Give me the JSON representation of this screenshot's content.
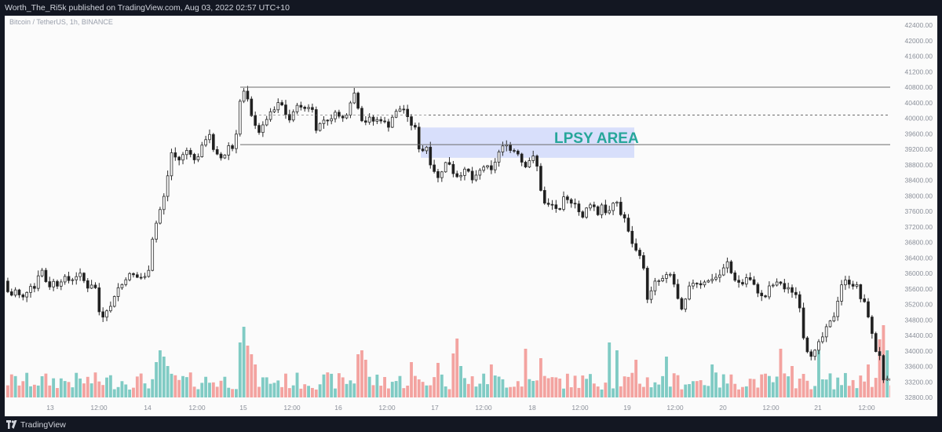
{
  "header": {
    "published_text": "Worth_The_Ri5k published on TradingView.com, Aug 03, 2022 02:57 UTC+10",
    "symbol_text": "Bitcoin / TetherUS, 1h, BINANCE"
  },
  "footer": {
    "brand": "TradingView"
  },
  "colors": {
    "up": "#26a69a",
    "down": "#ef5350",
    "candle_dark": "#1e1e1e",
    "candle_light": "#ffffff",
    "vol_up": "#80cbc4",
    "vol_down": "#f3a3a0",
    "zone_fill": "#cfd8fb",
    "label": "#26a69a",
    "level_line": "#6b6b6b"
  },
  "chart_data": {
    "type": "candlestick",
    "symbol": "Bitcoin / TetherUS",
    "interval": "1h",
    "exchange": "BINANCE",
    "ylim": [
      32600,
      42600
    ],
    "y_ticks": [
      "42400.00",
      "42000.00",
      "41600.00",
      "41200.00",
      "40800.00",
      "40400.00",
      "40000.00",
      "39600.00",
      "39200.00",
      "38800.00",
      "38400.00",
      "38000.00",
      "37600.00",
      "37200.00",
      "36800.00",
      "36400.00",
      "36000.00",
      "35600.00",
      "35200.00",
      "34800.00",
      "34400.00",
      "34000.00",
      "33600.00",
      "33200.00",
      "32800.00"
    ],
    "x_ticks": [
      "13",
      "12:00",
      "14",
      "12:00",
      "15",
      "12:00",
      "16",
      "12:00",
      "17",
      "12:00",
      "18",
      "12:00",
      "19",
      "12:00",
      "20",
      "12:00",
      "21",
      "12:00"
    ],
    "close_path": [
      [
        0,
        35800
      ],
      [
        10,
        35400
      ],
      [
        18,
        35600
      ],
      [
        24,
        35300
      ],
      [
        30,
        35500
      ],
      [
        36,
        35700
      ],
      [
        42,
        35600
      ],
      [
        46,
        36000
      ],
      [
        50,
        36100
      ],
      [
        54,
        35900
      ],
      [
        58,
        35600
      ],
      [
        64,
        35800
      ],
      [
        70,
        35700
      ],
      [
        78,
        35900
      ],
      [
        86,
        35800
      ],
      [
        92,
        35900
      ],
      [
        98,
        36000
      ],
      [
        104,
        35800
      ],
      [
        110,
        35600
      ],
      [
        116,
        35800
      ],
      [
        120,
        35500
      ],
      [
        124,
        34900
      ],
      [
        128,
        34900
      ],
      [
        132,
        35100
      ],
      [
        136,
        35000
      ],
      [
        140,
        35300
      ],
      [
        146,
        35600
      ],
      [
        152,
        35700
      ],
      [
        158,
        35900
      ],
      [
        164,
        36000
      ],
      [
        170,
        35900
      ],
      [
        176,
        35900
      ],
      [
        182,
        35900
      ],
      [
        188,
        36200
      ],
      [
        192,
        37100
      ],
      [
        196,
        37300
      ],
      [
        200,
        37600
      ],
      [
        204,
        37800
      ],
      [
        208,
        38200
      ],
      [
        212,
        38700
      ],
      [
        214,
        38900
      ],
      [
        216,
        39200
      ],
      [
        220,
        39000
      ],
      [
        224,
        38900
      ],
      [
        228,
        39000
      ],
      [
        232,
        39100
      ],
      [
        236,
        39200
      ],
      [
        240,
        39100
      ],
      [
        244,
        38900
      ],
      [
        248,
        39000
      ],
      [
        252,
        39100
      ],
      [
        256,
        39400
      ],
      [
        260,
        39500
      ],
      [
        264,
        39600
      ],
      [
        268,
        39200
      ],
      [
        272,
        39000
      ],
      [
        276,
        39100
      ],
      [
        280,
        38900
      ],
      [
        284,
        39100
      ],
      [
        288,
        39300
      ],
      [
        292,
        39200
      ],
      [
        296,
        39300
      ],
      [
        300,
        40000
      ],
      [
        302,
        40400
      ],
      [
        304,
        40500
      ],
      [
        308,
        40700
      ],
      [
        312,
        40500
      ],
      [
        316,
        40100
      ],
      [
        320,
        39900
      ],
      [
        324,
        39800
      ],
      [
        328,
        39600
      ],
      [
        334,
        39900
      ],
      [
        340,
        40100
      ],
      [
        346,
        40200
      ],
      [
        352,
        40400
      ],
      [
        358,
        40300
      ],
      [
        364,
        39900
      ],
      [
        370,
        40100
      ],
      [
        376,
        40400
      ],
      [
        382,
        40200
      ],
      [
        388,
        40300
      ],
      [
        394,
        40300
      ],
      [
        400,
        39700
      ],
      [
        406,
        39900
      ],
      [
        412,
        40000
      ],
      [
        418,
        39900
      ],
      [
        424,
        40200
      ],
      [
        430,
        40000
      ],
      [
        436,
        40000
      ],
      [
        442,
        40300
      ],
      [
        446,
        40700
      ],
      [
        450,
        40600
      ],
      [
        456,
        40000
      ],
      [
        462,
        39900
      ],
      [
        468,
        40000
      ],
      [
        474,
        39900
      ],
      [
        480,
        40000
      ],
      [
        486,
        39900
      ],
      [
        492,
        39800
      ],
      [
        498,
        40100
      ],
      [
        504,
        40200
      ],
      [
        510,
        40300
      ],
      [
        516,
        40000
      ],
      [
        522,
        39800
      ],
      [
        528,
        39700
      ],
      [
        532,
        39000
      ],
      [
        536,
        39200
      ],
      [
        540,
        39300
      ],
      [
        544,
        38900
      ],
      [
        548,
        38700
      ],
      [
        552,
        38600
      ],
      [
        556,
        38400
      ],
      [
        562,
        38800
      ],
      [
        568,
        38900
      ],
      [
        574,
        38600
      ],
      [
        580,
        38500
      ],
      [
        586,
        38600
      ],
      [
        592,
        38700
      ],
      [
        598,
        38400
      ],
      [
        604,
        38500
      ],
      [
        610,
        38700
      ],
      [
        616,
        38800
      ],
      [
        622,
        38600
      ],
      [
        628,
        38900
      ],
      [
        634,
        39200
      ],
      [
        640,
        39300
      ],
      [
        644,
        39400
      ],
      [
        648,
        39100
      ],
      [
        654,
        39200
      ],
      [
        660,
        39000
      ],
      [
        664,
        38700
      ],
      [
        670,
        38900
      ],
      [
        676,
        39000
      ],
      [
        680,
        38900
      ],
      [
        684,
        38300
      ],
      [
        688,
        38000
      ],
      [
        692,
        37700
      ],
      [
        698,
        37800
      ],
      [
        704,
        37700
      ],
      [
        710,
        37600
      ],
      [
        716,
        38000
      ],
      [
        722,
        37800
      ],
      [
        728,
        37900
      ],
      [
        734,
        37600
      ],
      [
        740,
        37400
      ],
      [
        746,
        37800
      ],
      [
        752,
        37800
      ],
      [
        758,
        37500
      ],
      [
        764,
        37800
      ],
      [
        770,
        37500
      ],
      [
        776,
        37700
      ],
      [
        782,
        37900
      ],
      [
        788,
        37500
      ],
      [
        794,
        37400
      ],
      [
        798,
        37000
      ],
      [
        802,
        36800
      ],
      [
        806,
        36600
      ],
      [
        812,
        36500
      ],
      [
        818,
        36000
      ],
      [
        822,
        35300
      ],
      [
        826,
        35500
      ],
      [
        832,
        35800
      ],
      [
        838,
        35800
      ],
      [
        844,
        35900
      ],
      [
        850,
        36000
      ],
      [
        856,
        35700
      ],
      [
        862,
        35200
      ],
      [
        866,
        35000
      ],
      [
        870,
        35300
      ],
      [
        876,
        35700
      ],
      [
        882,
        35800
      ],
      [
        888,
        35700
      ],
      [
        894,
        35800
      ],
      [
        900,
        35800
      ],
      [
        906,
        35900
      ],
      [
        912,
        35900
      ],
      [
        918,
        36100
      ],
      [
        924,
        36300
      ],
      [
        930,
        35900
      ],
      [
        936,
        35800
      ],
      [
        942,
        35700
      ],
      [
        948,
        35900
      ],
      [
        954,
        35800
      ],
      [
        960,
        35600
      ],
      [
        966,
        35400
      ],
      [
        972,
        35400
      ],
      [
        978,
        35700
      ],
      [
        984,
        35700
      ],
      [
        990,
        35800
      ],
      [
        996,
        35600
      ],
      [
        1002,
        35600
      ],
      [
        1008,
        35500
      ],
      [
        1014,
        35400
      ],
      [
        1018,
        34800
      ],
      [
        1022,
        34100
      ],
      [
        1026,
        34000
      ],
      [
        1030,
        33900
      ],
      [
        1036,
        34000
      ],
      [
        1040,
        34200
      ],
      [
        1046,
        34400
      ],
      [
        1052,
        34700
      ],
      [
        1058,
        34800
      ],
      [
        1064,
        35300
      ],
      [
        1070,
        35800
      ],
      [
        1076,
        35800
      ],
      [
        1082,
        35700
      ],
      [
        1088,
        35700
      ],
      [
        1094,
        35300
      ],
      [
        1100,
        35200
      ],
      [
        1106,
        34600
      ],
      [
        1110,
        34200
      ],
      [
        1114,
        33900
      ],
      [
        1118,
        33900
      ],
      [
        1122,
        33200
      ],
      [
        1126,
        33300
      ],
      [
        1130,
        33100
      ],
      [
        1134,
        33300
      ],
      [
        1138,
        32900
      ],
      [
        1142,
        33000
      ]
    ],
    "levels": [
      {
        "id": "range-high",
        "price": 40800,
        "from_x": 300,
        "style": "solid"
      },
      {
        "id": "mid-level",
        "price": 40080,
        "from_x": 540,
        "style": "dashed"
      },
      {
        "id": "lpsy-level",
        "price": 39320,
        "from_x": 300,
        "style": "solid"
      },
      {
        "id": "range-mid-dash",
        "price": 40080,
        "from_x": 312,
        "to_x": 540,
        "style": "dashed-faint"
      }
    ],
    "zone": {
      "label": "LPSY AREA",
      "price_top": 39760,
      "price_bottom": 38980,
      "from_x": 530,
      "to_x": 802
    }
  }
}
